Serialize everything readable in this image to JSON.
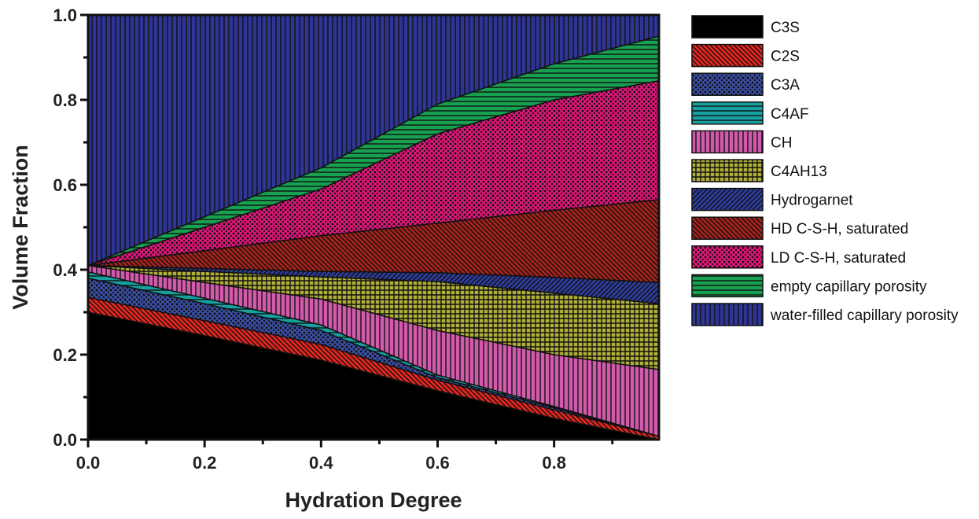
{
  "chart_data": {
    "type": "area",
    "stacked": true,
    "title": "",
    "xlabel": "Hydration Degree",
    "ylabel": "Volume Fraction",
    "xlim": [
      0,
      0.98
    ],
    "ylim": [
      0,
      1.0
    ],
    "x_ticks": [
      "0.0",
      "0.2",
      "0.4",
      "0.6",
      "0.8"
    ],
    "y_ticks": [
      "0.0",
      "0.2",
      "0.4",
      "0.6",
      "0.8",
      "1.0"
    ],
    "grid": false,
    "legend_position": "right",
    "x": [
      0,
      0.2,
      0.4,
      0.6,
      0.8,
      0.98
    ],
    "series": [
      {
        "name": "C3S",
        "color": "#000000",
        "pattern": "solid",
        "values": [
          0.3,
          0.245,
          0.187,
          0.115,
          0.05,
          0.0
        ]
      },
      {
        "name": "C2S",
        "color": "#e8261f",
        "pattern": "diagonal",
        "values": [
          0.035,
          0.035,
          0.037,
          0.025,
          0.02,
          0.008
        ]
      },
      {
        "name": "C3A",
        "color": "#3a4fa6",
        "pattern": "dots",
        "values": [
          0.045,
          0.04,
          0.033,
          0.006,
          0.005,
          0.0
        ]
      },
      {
        "name": "C4AF",
        "color": "#17a0a0",
        "pattern": "horizontal",
        "values": [
          0.015,
          0.013,
          0.013,
          0.006,
          0.003,
          0.0
        ]
      },
      {
        "name": "CH",
        "color": "#d25aac",
        "pattern": "vertical",
        "values": [
          0.015,
          0.037,
          0.061,
          0.105,
          0.122,
          0.157
        ]
      },
      {
        "name": "C4AH13",
        "color": "#b0b038",
        "pattern": "grid",
        "values": [
          0.0,
          0.026,
          0.052,
          0.115,
          0.145,
          0.155
        ]
      },
      {
        "name": "Hydrogarnet",
        "color": "#2e3c9e",
        "pattern": "diagonal-up",
        "values": [
          0.0,
          0.007,
          0.013,
          0.021,
          0.037,
          0.05
        ]
      },
      {
        "name": "HD C-S-H, saturated",
        "color": "#a8221c",
        "pattern": "diagonal",
        "values": [
          0.0,
          0.042,
          0.084,
          0.117,
          0.158,
          0.195
        ]
      },
      {
        "name": "LD C-S-H, saturated",
        "color": "#e8157e",
        "pattern": "dots",
        "values": [
          0.0,
          0.055,
          0.11,
          0.21,
          0.26,
          0.28
        ]
      },
      {
        "name": "empty capillary porosity",
        "color": "#17a050",
        "pattern": "horizontal",
        "values": [
          0.0,
          0.025,
          0.05,
          0.07,
          0.085,
          0.105
        ]
      },
      {
        "name": "water-filled capillary porosity",
        "color": "#2e3594",
        "pattern": "vertical",
        "values": [
          0.59,
          0.475,
          0.36,
          0.21,
          0.115,
          0.05
        ]
      }
    ]
  }
}
